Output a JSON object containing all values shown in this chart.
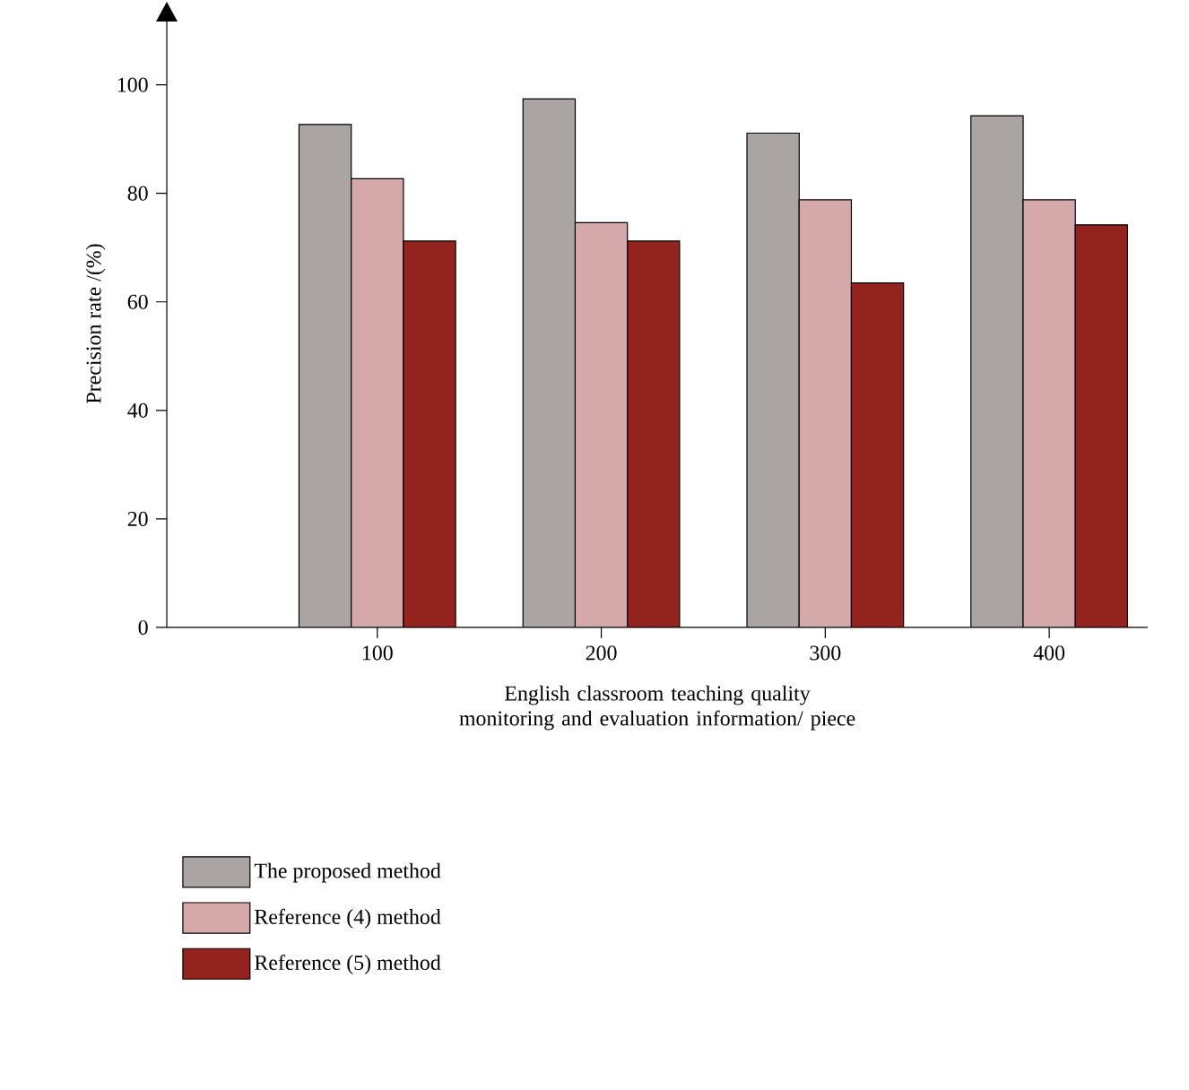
{
  "chart_data": {
    "type": "bar",
    "xlabel": "English classroom teaching quality monitoring and evaluation information/ piece",
    "ylabel": "Precision rate /(%)",
    "categories": [
      "100",
      "200",
      "300",
      "400"
    ],
    "series": [
      {
        "name": "The proposed method",
        "color": "#aaa5a2",
        "values": [
          92.7,
          97.4,
          91.1,
          94.3
        ]
      },
      {
        "name": "Reference (4) method",
        "color": "#d5a9aa",
        "values": [
          82.7,
          74.6,
          78.8,
          78.8
        ]
      },
      {
        "name": "Reference (5) method",
        "color": "#92231e",
        "values": [
          71.2,
          71.2,
          63.5,
          74.2
        ]
      }
    ],
    "ylim": [
      0,
      112
    ],
    "yticks": [
      0,
      20,
      40,
      60,
      80,
      100
    ],
    "grid": false,
    "legend": "bottom left"
  }
}
